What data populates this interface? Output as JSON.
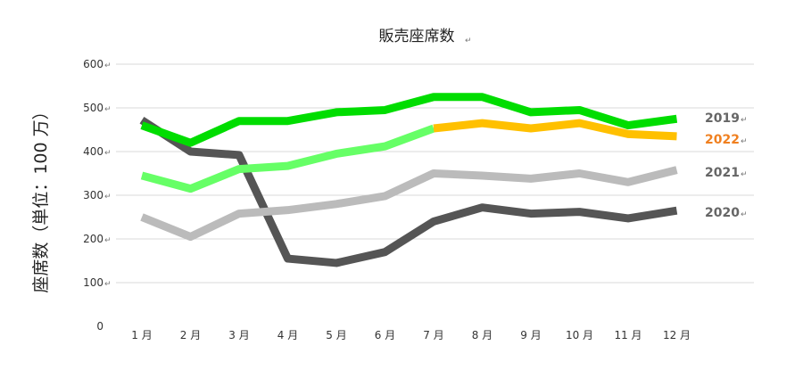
{
  "chart_data": {
    "type": "line",
    "title": "販売座席数",
    "ylabel": "座席数（単位：100 万）",
    "xlabel": "",
    "categories": [
      "1 月",
      "2 月",
      "3 月",
      "4 月",
      "5 月",
      "6 月",
      "7 月",
      "8 月",
      "9 月",
      "10 月",
      "11 月",
      "12 月"
    ],
    "ylim": [
      0,
      600
    ],
    "yticks": [
      "0",
      "100",
      "200",
      "300",
      "400",
      "500",
      "600"
    ],
    "grid": true,
    "legend": "series labels placed at the right end of each line",
    "series": [
      {
        "name": "2019",
        "color": "#00dd00",
        "label_color": "#666666",
        "values": [
          460,
          420,
          470,
          470,
          490,
          495,
          525,
          525,
          490,
          495,
          460,
          475
        ]
      },
      {
        "name": "2022",
        "color": "#ffc000",
        "label_color": "#f08020",
        "values": [
          345,
          315,
          360,
          367,
          395,
          412,
          453,
          465,
          453,
          465,
          440,
          435
        ]
      },
      {
        "name": "2021",
        "color": "#bbbbbb",
        "label_color": "#666666",
        "values": [
          250,
          205,
          258,
          266,
          280,
          298,
          350,
          345,
          338,
          350,
          330,
          358
        ]
      },
      {
        "name": "2020",
        "color": "#555555",
        "label_color": "#666666",
        "values": [
          472,
          400,
          392,
          155,
          145,
          170,
          240,
          272,
          258,
          262,
          247,
          265
        ]
      }
    ],
    "series_2022_early_color": "#66ff66"
  }
}
